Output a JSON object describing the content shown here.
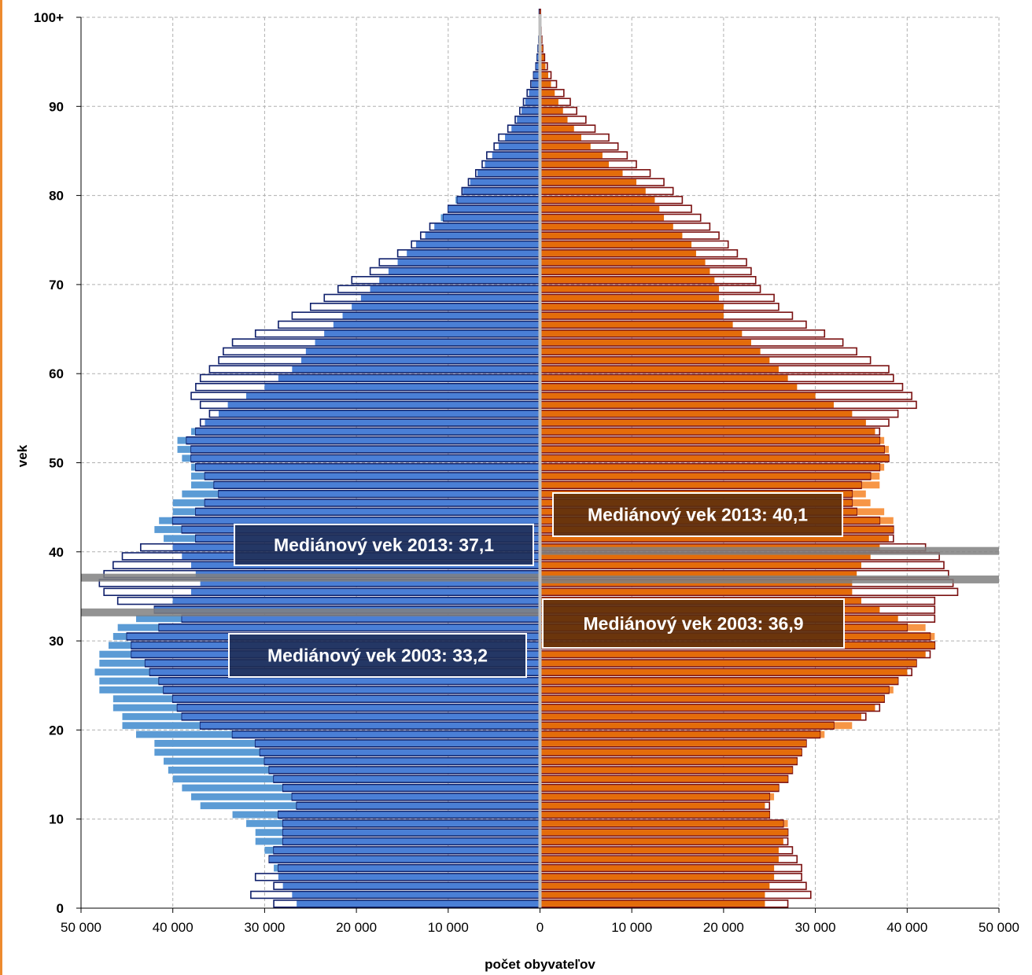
{
  "title_fragment": "",
  "chart_data": {
    "type": "bar",
    "orientation": "horizontal",
    "subtype": "population-pyramid",
    "xlabel": "počet obyvateľov",
    "ylabel": "vek",
    "xlim": [
      -50000,
      50000
    ],
    "ylim": [
      0,
      100
    ],
    "x_ticks": [
      -50000,
      -40000,
      -30000,
      -20000,
      -10000,
      0,
      10000,
      20000,
      30000,
      40000,
      50000
    ],
    "x_tick_labels": [
      "50 000",
      "40 000",
      "30 000",
      "20 000",
      "10 000",
      "0",
      "10 000",
      "20 000",
      "30 000",
      "40 000",
      "50 000"
    ],
    "y_ticks": [
      0,
      10,
      20,
      30,
      40,
      50,
      60,
      70,
      80,
      90,
      100
    ],
    "y_tick_labels": [
      "0",
      "10",
      "20",
      "30",
      "40",
      "50",
      "60",
      "70",
      "80",
      "90",
      "100+"
    ],
    "grid": true,
    "ages": [
      0,
      1,
      2,
      3,
      4,
      5,
      6,
      7,
      8,
      9,
      10,
      11,
      12,
      13,
      14,
      15,
      16,
      17,
      18,
      19,
      20,
      21,
      22,
      23,
      24,
      25,
      26,
      27,
      28,
      29,
      30,
      31,
      32,
      33,
      34,
      35,
      36,
      37,
      38,
      39,
      40,
      41,
      42,
      43,
      44,
      45,
      46,
      47,
      48,
      49,
      50,
      51,
      52,
      53,
      54,
      55,
      56,
      57,
      58,
      59,
      60,
      61,
      62,
      63,
      64,
      65,
      66,
      67,
      68,
      69,
      70,
      71,
      72,
      73,
      74,
      75,
      76,
      77,
      78,
      79,
      80,
      81,
      82,
      83,
      84,
      85,
      86,
      87,
      88,
      89,
      90,
      91,
      92,
      93,
      94,
      95,
      96,
      97,
      98,
      99,
      100
    ],
    "series": [
      {
        "colors": {
          "fill": "#4a7fd6",
          "light": "#5b9bd5"
        },
        "side": "left",
        "values_2003": [
          26500,
          27000,
          28000,
          28500,
          29000,
          29500,
          30000,
          31000,
          31000,
          32000,
          33500,
          37000,
          38000,
          39000,
          40000,
          40500,
          41000,
          42000,
          42000,
          44000,
          45500,
          45500,
          46500,
          46500,
          48000,
          48000,
          48500,
          48000,
          48000,
          47000,
          46500,
          46000,
          44000,
          42000,
          40000,
          38000,
          37000,
          37500,
          38000,
          39000,
          40000,
          41000,
          42000,
          41500,
          40000,
          40000,
          39000,
          38000,
          38000,
          38000,
          39000,
          39500,
          39500,
          38000,
          36500,
          35000,
          34000,
          32000,
          30000,
          28500,
          27000,
          26000,
          25500,
          24500,
          23500,
          22500,
          21500,
          20500,
          19500,
          18500,
          17500,
          16500,
          15500,
          14500,
          13500,
          12500,
          11500,
          10800,
          10000,
          9200,
          8400,
          7600,
          6800,
          6000,
          5200,
          4500,
          3800,
          3100,
          2500,
          2000,
          1600,
          1200,
          900,
          700,
          500,
          380,
          280,
          200,
          140,
          100,
          120
        ],
        "values_2013": [
          29000,
          31500,
          29000,
          31000,
          28500,
          29500,
          29000,
          28000,
          28000,
          28000,
          28500,
          26500,
          27000,
          28000,
          29000,
          29500,
          30000,
          30500,
          31000,
          33500,
          37000,
          39000,
          39500,
          40000,
          41000,
          41500,
          42500,
          43000,
          44500,
          44500,
          45000,
          41500,
          39000,
          42000,
          46000,
          47500,
          48000,
          47500,
          46500,
          45500,
          43500,
          37500,
          39000,
          40000,
          37500,
          36500,
          35000,
          35500,
          36500,
          37500,
          38000,
          38000,
          38500,
          37500,
          37000,
          36000,
          37000,
          38000,
          37500,
          37000,
          36000,
          35000,
          34500,
          33500,
          31000,
          28500,
          27000,
          25000,
          23500,
          22000,
          20500,
          18500,
          17500,
          15500,
          14000,
          13000,
          12000,
          10500,
          10000,
          9000,
          8500,
          7800,
          7000,
          6300,
          5800,
          5000,
          4500,
          3500,
          2700,
          2200,
          1800,
          1400,
          1000,
          700,
          450,
          300,
          200,
          130,
          90,
          60,
          80
        ]
      },
      {
        "colors": {
          "fill": "#e46c0a",
          "light": "#f79646"
        },
        "side": "right",
        "values_2003": [
          24500,
          24500,
          25000,
          25500,
          25500,
          26000,
          26000,
          26500,
          27000,
          27000,
          25000,
          24500,
          25500,
          26000,
          27000,
          27500,
          28000,
          28500,
          29000,
          31000,
          34000,
          35000,
          36500,
          37500,
          38500,
          39000,
          40000,
          41000,
          42000,
          43000,
          43000,
          42000,
          39000,
          37000,
          35000,
          34000,
          34000,
          34500,
          35000,
          36000,
          37000,
          38000,
          38500,
          38500,
          37500,
          36000,
          35500,
          37000,
          37000,
          37500,
          38000,
          38000,
          37500,
          36500,
          35500,
          34000,
          32000,
          30000,
          28000,
          27000,
          26000,
          25000,
          24000,
          23000,
          22000,
          21000,
          20000,
          20000,
          19500,
          19500,
          19000,
          18500,
          18000,
          17000,
          16500,
          15500,
          14500,
          13500,
          13000,
          12500,
          11500,
          10500,
          9000,
          7500,
          6800,
          5500,
          4500,
          3700,
          3000,
          2500,
          2000,
          1600,
          1200,
          900,
          600,
          450,
          300,
          200,
          130,
          80,
          60
        ],
        "values_2013": [
          27000,
          29500,
          29000,
          28500,
          28500,
          28000,
          27500,
          27000,
          27000,
          26500,
          25000,
          25000,
          25000,
          26000,
          27000,
          27500,
          28000,
          28500,
          29000,
          30500,
          32000,
          35500,
          37000,
          37500,
          38000,
          39000,
          40500,
          41000,
          42500,
          43000,
          42500,
          40000,
          43000,
          43000,
          43000,
          45500,
          45000,
          44500,
          44000,
          43500,
          42000,
          38500,
          38500,
          37000,
          34500,
          34000,
          34000,
          35000,
          36000,
          37000,
          38000,
          37500,
          37000,
          37000,
          38000,
          39000,
          41000,
          40500,
          39500,
          38500,
          38000,
          36000,
          34500,
          33000,
          31000,
          29000,
          27500,
          26000,
          25500,
          24000,
          23500,
          23000,
          22500,
          21500,
          20500,
          19500,
          18500,
          17500,
          16500,
          15500,
          14500,
          13500,
          12000,
          10500,
          9500,
          8500,
          7500,
          6000,
          5000,
          4000,
          3300,
          2600,
          1800,
          1200,
          800,
          500,
          300,
          200,
          120,
          70,
          50
        ]
      }
    ],
    "annotations": [
      {
        "text": "Mediánový vek 2013: 37,1",
        "side": "left",
        "age": 37.1
      },
      {
        "text": "Mediánový vek 2003: 33,2",
        "side": "left",
        "age": 33.2
      },
      {
        "text": "Mediánový vek 2013: 40,1",
        "side": "right",
        "age": 40.1
      },
      {
        "text": "Mediánový vek 2003: 36,9",
        "side": "right",
        "age": 36.9
      }
    ]
  }
}
